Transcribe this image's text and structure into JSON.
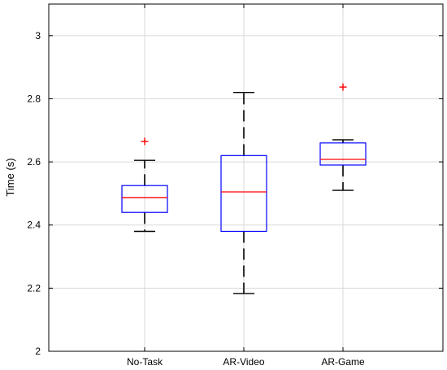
{
  "chart_data": {
    "type": "boxplot",
    "title": "",
    "xlabel": "",
    "ylabel": "Time (s)",
    "ylim": [
      2.0,
      3.1
    ],
    "yticks": [
      2,
      2.2,
      2.4,
      2.6,
      2.8,
      3
    ],
    "ytick_labels": [
      "2",
      "2.2",
      "2.4",
      "2.6",
      "2.8",
      "3"
    ],
    "grid": true,
    "categories": [
      "No-Task",
      "AR-Video",
      "AR-Game"
    ],
    "boxes": [
      {
        "category": "No-Task",
        "whisker_low": 2.38,
        "q1": 2.44,
        "median": 2.487,
        "q3": 2.525,
        "whisker_high": 2.605,
        "outliers": [
          2.665
        ]
      },
      {
        "category": "AR-Video",
        "whisker_low": 2.183,
        "q1": 2.38,
        "median": 2.505,
        "q3": 2.62,
        "whisker_high": 2.82,
        "outliers": []
      },
      {
        "category": "AR-Game",
        "whisker_low": 2.51,
        "q1": 2.59,
        "median": 2.608,
        "q3": 2.66,
        "whisker_high": 2.67,
        "outliers": [
          2.837
        ]
      }
    ],
    "colors": {
      "box": "#0000ff",
      "median": "#ff0000",
      "whisker": "#000000",
      "outlier": "#ff0000",
      "grid": "#d9d9d9"
    }
  }
}
